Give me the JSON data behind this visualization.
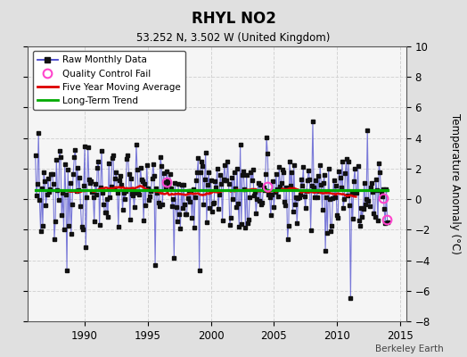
{
  "title": "RHYL NO2",
  "subtitle": "53.252 N, 3.502 W (United Kingdom)",
  "ylabel": "Temperature Anomaly (°C)",
  "xlabel_bottom": "Berkeley Earth",
  "ylim": [
    -8,
    10
  ],
  "xlim": [
    1985.5,
    2015.5
  ],
  "xticks": [
    1990,
    1995,
    2000,
    2005,
    2010,
    2015
  ],
  "yticks": [
    -8,
    -6,
    -4,
    -2,
    0,
    2,
    4,
    6,
    8,
    10
  ],
  "fig_bg_color": "#e0e0e0",
  "plot_bg_color": "#f5f5f5",
  "grid_color": "#d0d0d0",
  "raw_line_color": "#4444cc",
  "raw_dot_color": "#111111",
  "ma_color": "#dd0000",
  "trend_color": "#00aa00",
  "qc_fail_color": "#ff44cc",
  "trend_value": 0.6,
  "seed": 7,
  "n_months": 336,
  "start_year": 1986.083,
  "qc_fail_times": [
    1996.5,
    2004.5,
    2013.67,
    2013.95
  ],
  "qc_fail_values": [
    1.1,
    0.8,
    0.08,
    -1.35
  ]
}
